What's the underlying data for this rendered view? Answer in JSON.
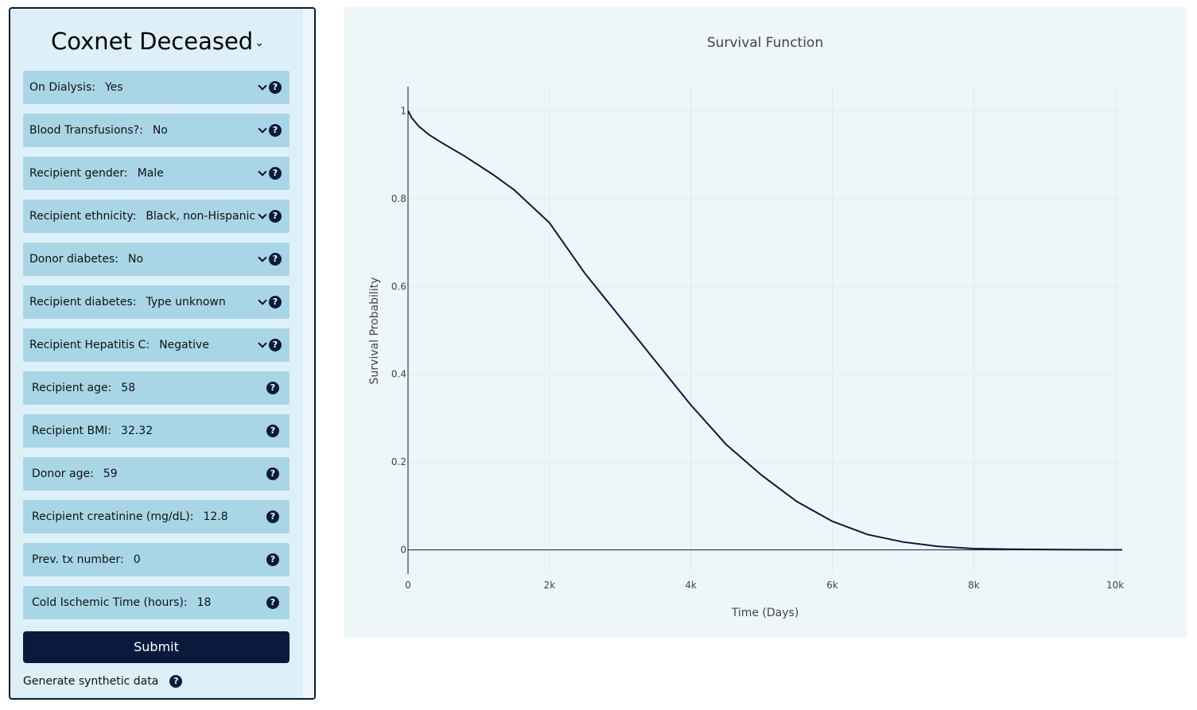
{
  "sidebar": {
    "model_title": "Coxnet Deceased",
    "fields": [
      {
        "label": "On Dialysis:",
        "value": "Yes",
        "type": "select"
      },
      {
        "label": "Blood Transfusions?:",
        "value": "No",
        "type": "select"
      },
      {
        "label": "Recipient gender:",
        "value": "Male",
        "type": "select"
      },
      {
        "label": "Recipient ethnicity:",
        "value": "Black, non-Hispanic",
        "type": "select"
      },
      {
        "label": "Donor diabetes:",
        "value": "No",
        "type": "select"
      },
      {
        "label": "Recipient diabetes:",
        "value": "Type unknown",
        "type": "select"
      },
      {
        "label": "Recipient Hepatitis C:",
        "value": "Negative",
        "type": "select"
      },
      {
        "label": "Recipient age:",
        "value": "58",
        "type": "number"
      },
      {
        "label": "Recipient BMI:",
        "value": "32.32",
        "type": "number"
      },
      {
        "label": "Donor age:",
        "value": "59",
        "type": "number"
      },
      {
        "label": "Recipient creatinine (mg/dL):",
        "value": "12.8",
        "type": "number"
      },
      {
        "label": "Prev. tx number:",
        "value": "0",
        "type": "number"
      },
      {
        "label": "Cold Ischemic Time (hours):",
        "value": "18",
        "type": "number"
      }
    ],
    "help_glyph": "?",
    "submit_label": "Submit",
    "synthetic_label": "Generate synthetic data"
  },
  "colors": {
    "sidebar_bg": "#def0f7",
    "field_bg": "#a9d6e6",
    "accent_dark": "#0a1a3d",
    "chart_bg": "#eef6f9",
    "line": "#0a1a3d"
  },
  "icons": {
    "help": "question-circle-icon",
    "dropdown": "chevron-down-icon"
  },
  "chart_data": {
    "type": "line",
    "title": "Survival Function",
    "xlabel": "Time (Days)",
    "ylabel": "Survival Probability",
    "xlim": [
      0,
      10100
    ],
    "ylim": [
      -0.055,
      1.055
    ],
    "x_ticks": [
      0,
      2000,
      4000,
      6000,
      8000,
      10000
    ],
    "x_tick_labels": [
      "0",
      "2k",
      "4k",
      "6k",
      "8k",
      "10k"
    ],
    "y_ticks": [
      0,
      0.2,
      0.4,
      0.6,
      0.8,
      1
    ],
    "y_tick_labels": [
      "0",
      "0.2",
      "0.4",
      "0.6",
      "0.8",
      "1"
    ],
    "grid": true,
    "legend": "none",
    "series": [
      {
        "x": [
          0,
          50,
          150,
          300,
          500,
          800,
          1200,
          1500,
          2000,
          2500,
          3000,
          3500,
          4000,
          4500,
          5000,
          5500,
          6000,
          6500,
          7000,
          7500,
          8000,
          8500,
          9000,
          9500,
          10100
        ],
        "y": [
          1.0,
          0.985,
          0.965,
          0.945,
          0.925,
          0.897,
          0.855,
          0.82,
          0.745,
          0.63,
          0.53,
          0.43,
          0.33,
          0.24,
          0.17,
          0.11,
          0.065,
          0.035,
          0.018,
          0.008,
          0.003,
          0.0015,
          0.001,
          0.0005,
          0.0002
        ]
      }
    ]
  }
}
